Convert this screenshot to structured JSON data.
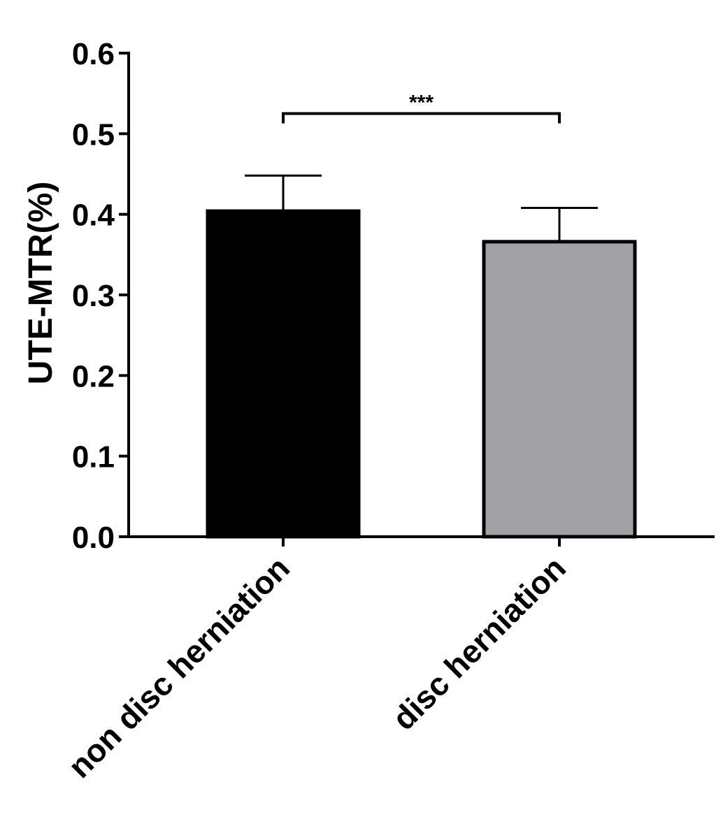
{
  "chart_data": {
    "type": "bar",
    "title": "",
    "xlabel": "",
    "ylabel": "UTE-MTR(%)",
    "ylim": [
      0,
      0.6
    ],
    "yticks": [
      "0.0",
      "0.1",
      "0.2",
      "0.3",
      "0.4",
      "0.5",
      "0.6"
    ],
    "categories": [
      "non disc herniation",
      "disc herniation"
    ],
    "values": [
      0.404,
      0.366
    ],
    "errors": [
      0.044,
      0.042
    ],
    "bar_colors": [
      "#000000",
      "#a2a1a6"
    ],
    "significance": {
      "label": "***",
      "between": [
        0,
        1
      ],
      "y": 0.525
    },
    "grid": false,
    "legend": "none"
  }
}
